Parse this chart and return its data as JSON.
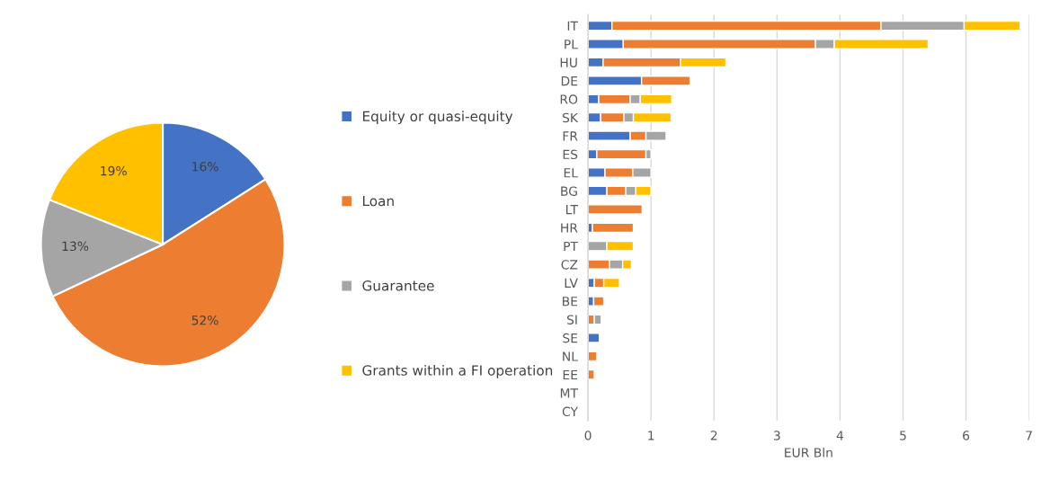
{
  "chart_data": [
    {
      "type": "pie",
      "categories": [
        "Equity or quasi-equity",
        "Loan",
        "Guarantee",
        "Grants within a FI operation"
      ],
      "values": [
        16,
        52,
        13,
        19
      ],
      "value_labels": [
        "16%",
        "52%",
        "13%",
        "19%"
      ],
      "colors": [
        "#4472c4",
        "#ed7d31",
        "#a5a5a5",
        "#ffc000"
      ],
      "legend": "right"
    },
    {
      "type": "bar",
      "orientation": "horizontal",
      "stacked": true,
      "xlabel": "EUR Bln",
      "categories": [
        "IT",
        "PL",
        "HU",
        "DE",
        "RO",
        "SK",
        "FR",
        "ES",
        "EL",
        "BG",
        "LT",
        "HR",
        "PT",
        "CZ",
        "LV",
        "BE",
        "SI",
        "SE",
        "NL",
        "EE",
        "MT",
        "CY"
      ],
      "series": [
        {
          "color": "#4472c4",
          "values": [
            0.38,
            0.56,
            0.24,
            0.85,
            0.17,
            0.2,
            0.67,
            0.14,
            0.27,
            0.3,
            null,
            0.07,
            null,
            null,
            0.1,
            0.09,
            null,
            0.18,
            null,
            null,
            null,
            null
          ]
        },
        {
          "color": "#ed7d31",
          "values": [
            4.27,
            3.05,
            1.23,
            0.77,
            0.5,
            0.37,
            0.25,
            0.78,
            0.44,
            0.3,
            0.86,
            0.65,
            null,
            0.34,
            0.15,
            0.16,
            0.1,
            null,
            0.14,
            0.1,
            null,
            null
          ]
        },
        {
          "color": "#a5a5a5",
          "values": [
            1.32,
            0.3,
            null,
            null,
            0.16,
            0.15,
            0.32,
            0.08,
            0.29,
            0.16,
            null,
            null,
            0.3,
            0.21,
            null,
            null,
            0.11,
            null,
            null,
            null,
            null,
            null
          ]
        },
        {
          "color": "#ffc000",
          "values": [
            0.89,
            1.49,
            0.72,
            null,
            0.5,
            0.6,
            null,
            null,
            null,
            0.24,
            null,
            null,
            0.42,
            0.14,
            0.25,
            null,
            null,
            null,
            null,
            null,
            null,
            null
          ]
        }
      ],
      "xlim": [
        0,
        7
      ],
      "xticks": [
        0,
        1,
        2,
        3,
        4,
        5,
        6,
        7
      ],
      "grid": "x"
    }
  ]
}
